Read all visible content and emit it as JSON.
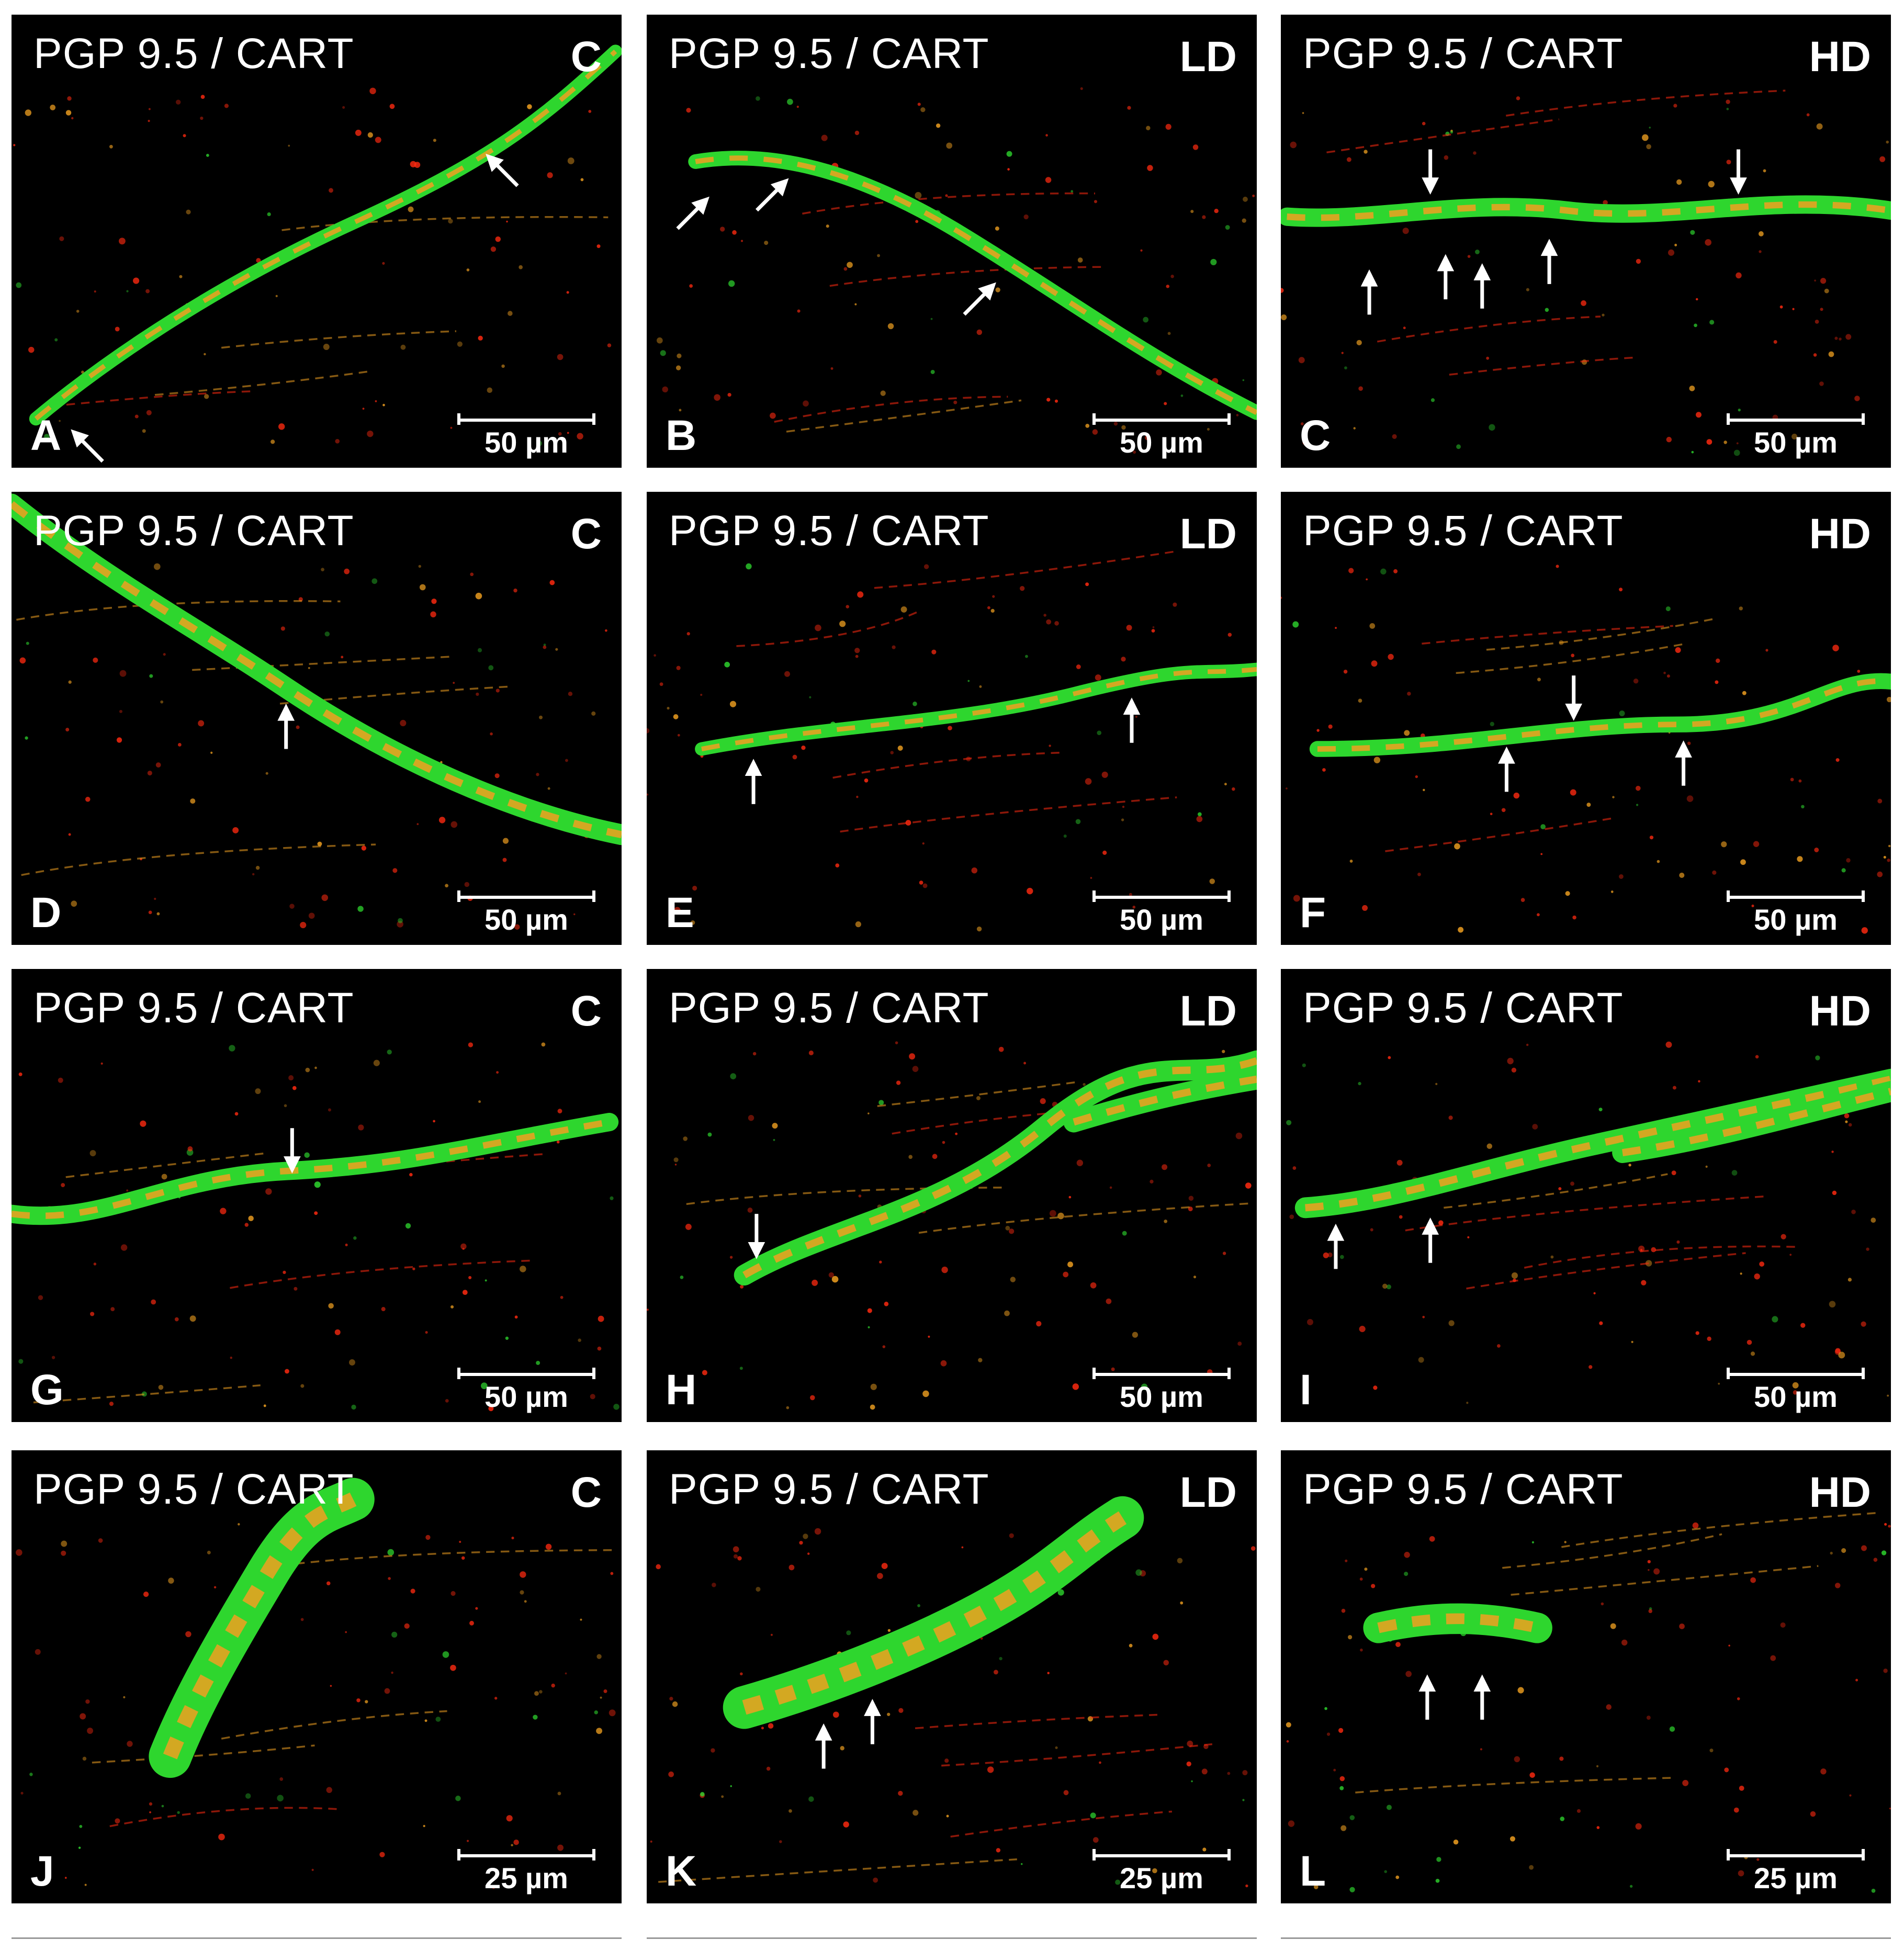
{
  "stain_label": "PGP 9.5 / CART",
  "colors": {
    "pgp95": "#2ed62e",
    "cart": "#ff2a10",
    "colocalized": "#f0a020",
    "background": "#000000"
  },
  "panels": [
    {
      "letter": "A",
      "group": "C",
      "scale": "50 µm"
    },
    {
      "letter": "B",
      "group": "LD",
      "scale": "50 µm"
    },
    {
      "letter": "C",
      "group": "HD",
      "scale": "50 µm"
    },
    {
      "letter": "D",
      "group": "C",
      "scale": "50 µm"
    },
    {
      "letter": "E",
      "group": "LD",
      "scale": "50 µm"
    },
    {
      "letter": "F",
      "group": "HD",
      "scale": "50 µm"
    },
    {
      "letter": "G",
      "group": "C",
      "scale": "50 µm"
    },
    {
      "letter": "H",
      "group": "LD",
      "scale": "50 µm"
    },
    {
      "letter": "I",
      "group": "HD",
      "scale": "50 µm"
    },
    {
      "letter": "J",
      "group": "C",
      "scale": "25 µm"
    },
    {
      "letter": "K",
      "group": "LD",
      "scale": "25 µm"
    },
    {
      "letter": "L",
      "group": "HD",
      "scale": "25 µm"
    }
  ]
}
